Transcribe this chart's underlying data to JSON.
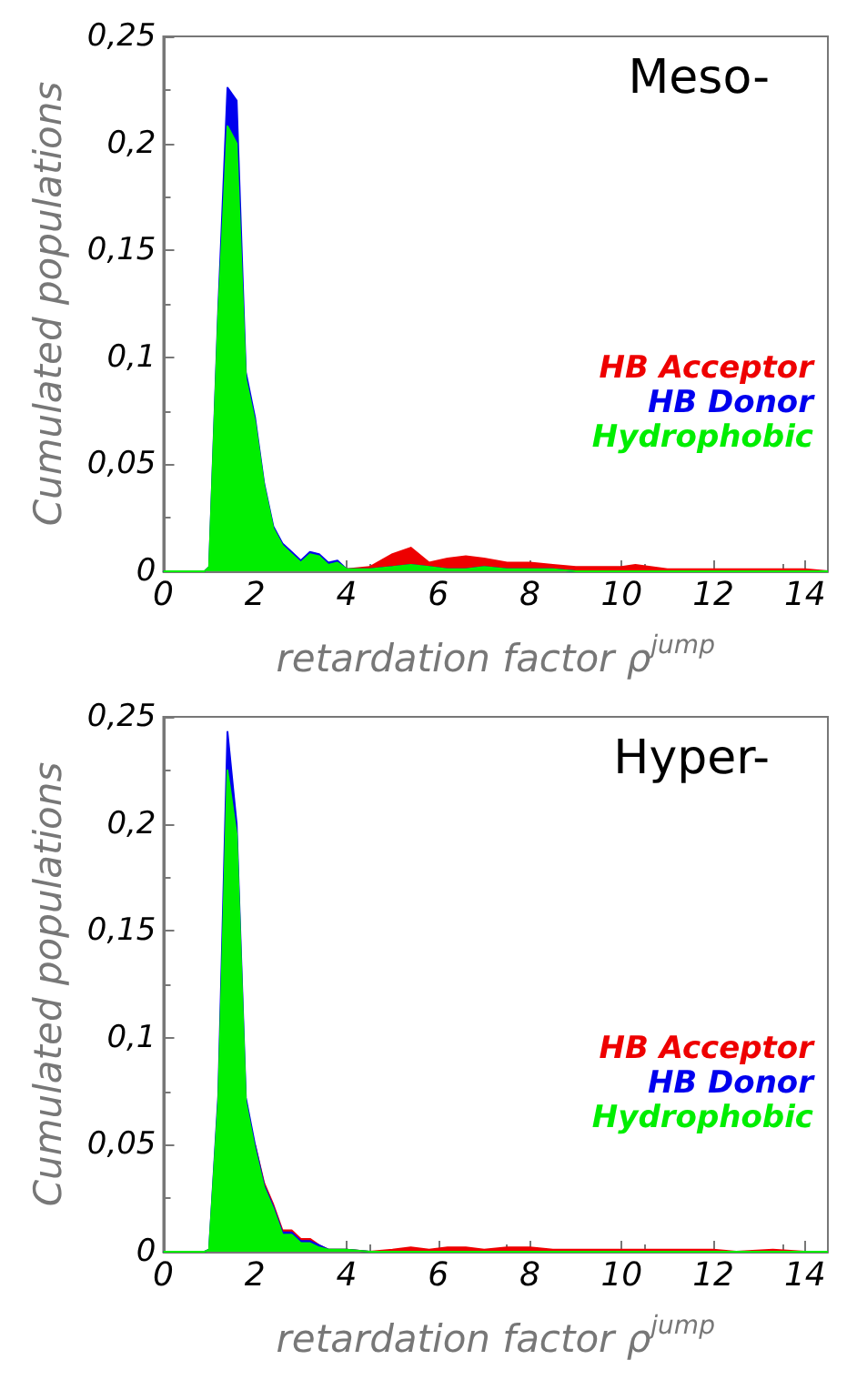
{
  "chart_data": [
    {
      "type": "area",
      "stacked": true,
      "ylabel": "Cumulated populations",
      "xlabel": "retardation factor ρ$^{jump}$",
      "annotations": [
        "Meso-"
      ],
      "grid": false,
      "marker": "none",
      "x": [
        0,
        0.9,
        1.0,
        1.2,
        1.4,
        1.6,
        1.8,
        2.0,
        2.2,
        2.4,
        2.6,
        2.8,
        3.0,
        3.2,
        3.4,
        3.6,
        3.8,
        4.0,
        4.5,
        5.0,
        5.4,
        5.8,
        6.2,
        6.6,
        7.0,
        7.5,
        8.0,
        8.5,
        9.0,
        9.5,
        10.0,
        10.3,
        11,
        12,
        12.5,
        13.3,
        14,
        14.5
      ],
      "xlim": [
        0,
        14.5
      ],
      "xticks": [
        0,
        2,
        4,
        6,
        8,
        10,
        12,
        14
      ],
      "ylim": [
        0,
        0.25
      ],
      "yticks": [
        {
          "value": 0,
          "label": "0"
        },
        {
          "value": 0.05,
          "label": "0,05"
        },
        {
          "value": 0.1,
          "label": "0,1"
        },
        {
          "value": 0.15,
          "label": "0,15"
        },
        {
          "value": 0.2,
          "label": "0,2"
        },
        {
          "value": 0.25,
          "label": "0,25"
        }
      ],
      "series": [
        {
          "name": "Hydrophobic",
          "color": "#00ee00",
          "values": [
            0,
            0,
            0.002,
            0.12,
            0.208,
            0.2,
            0.09,
            0.07,
            0.04,
            0.02,
            0.012,
            0.008,
            0.004,
            0.008,
            0.007,
            0.003,
            0.004,
            0.001,
            0.001,
            0.002,
            0.003,
            0.002,
            0.001,
            0.001,
            0.002,
            0.001,
            0.001,
            0.001,
            0,
            0,
            0,
            0,
            0,
            0,
            0,
            0,
            0,
            0
          ]
        },
        {
          "name": "HB Donor",
          "color": "#0000ee",
          "values": [
            0,
            0,
            0,
            0.003,
            0.018,
            0.02,
            0.003,
            0.002,
            0.001,
            0.001,
            0.001,
            0.001,
            0.001,
            0.001,
            0.001,
            0.001,
            0.001,
            0,
            0,
            0,
            0,
            0,
            0,
            0,
            0,
            0,
            0,
            0,
            0,
            0,
            0,
            0,
            0,
            0,
            0,
            0,
            0,
            0
          ]
        },
        {
          "name": "HB Acceptor",
          "color": "#ee0000",
          "values": [
            null,
            null,
            null,
            null,
            null,
            null,
            null,
            null,
            null,
            null,
            null,
            null,
            null,
            null,
            null,
            null,
            null,
            0,
            0.001,
            0.006,
            0.008,
            0.002,
            0.005,
            0.006,
            0.004,
            0.003,
            0.003,
            0.002,
            0.002,
            0.002,
            0.002,
            0.003,
            0.001,
            0.001,
            0.001,
            0.001,
            0.001,
            0
          ]
        }
      ]
    },
    {
      "type": "area",
      "stacked": true,
      "ylabel": "Cumulated populations",
      "xlabel": "retardation factor ρ$^{jump}$",
      "annotations": [
        "Hyper-"
      ],
      "grid": false,
      "marker": "none",
      "x": [
        0,
        0.9,
        1.0,
        1.2,
        1.4,
        1.6,
        1.8,
        2.0,
        2.2,
        2.4,
        2.6,
        2.8,
        3.0,
        3.2,
        3.4,
        3.6,
        3.8,
        4.0,
        4.5,
        5.0,
        5.4,
        5.8,
        6.2,
        6.6,
        7.0,
        7.5,
        8.0,
        8.5,
        9.0,
        9.5,
        10.0,
        10.3,
        11,
        12,
        12.5,
        13.3,
        14,
        14.5
      ],
      "xlim": [
        0,
        14.5
      ],
      "xticks": [
        0,
        2,
        4,
        6,
        8,
        10,
        12,
        14
      ],
      "ylim": [
        0,
        0.25
      ],
      "yticks": [
        {
          "value": 0,
          "label": "0"
        },
        {
          "value": 0.05,
          "label": "0,05"
        },
        {
          "value": 0.1,
          "label": "0,1"
        },
        {
          "value": 0.15,
          "label": "0,15"
        },
        {
          "value": 0.2,
          "label": "0,2"
        },
        {
          "value": 0.25,
          "label": "0,25"
        }
      ],
      "series": [
        {
          "name": "Hydrophobic",
          "color": "#00ee00",
          "values": [
            0,
            0,
            0.001,
            0.07,
            0.225,
            0.195,
            0.07,
            0.048,
            0.03,
            0.02,
            0.008,
            0.008,
            0.004,
            0.004,
            0.002,
            0.001,
            0.001,
            0.001,
            0,
            0,
            0,
            0,
            0,
            0,
            0,
            0,
            0,
            0,
            0,
            0,
            0,
            0,
            0,
            0,
            0,
            0,
            0,
            0
          ]
        },
        {
          "name": "HB Donor",
          "color": "#0000ee",
          "values": [
            0,
            0,
            0,
            0.003,
            0.018,
            0.005,
            0.002,
            0.002,
            0.001,
            0.001,
            0.001,
            0.001,
            0.001,
            0.001,
            0.001,
            0,
            0,
            0,
            0,
            0,
            0,
            0,
            0,
            0,
            0,
            0,
            0,
            0,
            0,
            0,
            0,
            0,
            0,
            0,
            0,
            0,
            0,
            0
          ]
        },
        {
          "name": "HB Acceptor",
          "color": "#ee0000",
          "values": [
            null,
            null,
            null,
            null,
            null,
            null,
            null,
            0,
            0.001,
            0.001,
            0.001,
            0.001,
            0.001,
            0.001,
            0,
            0,
            0,
            0,
            0,
            0.001,
            0.002,
            0.001,
            0.002,
            0.002,
            0.001,
            0.002,
            0.002,
            0.001,
            0.001,
            0.001,
            0.001,
            0.001,
            0.001,
            0.001,
            0,
            0.001,
            0,
            0
          ]
        }
      ]
    }
  ]
}
